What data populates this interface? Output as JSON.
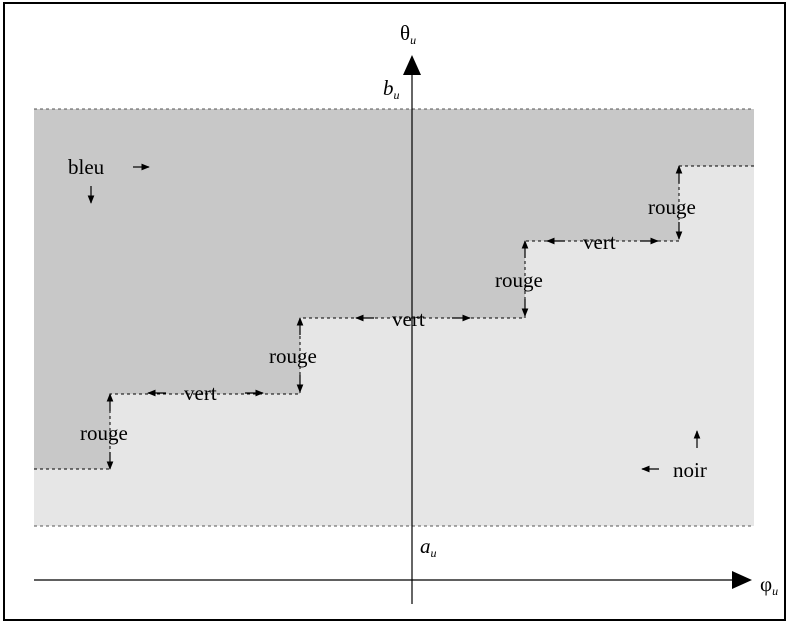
{
  "axes": {
    "vertical": {
      "symbol": "θ",
      "subscript": "u"
    },
    "horizontal": {
      "symbol": "φ",
      "subscript": "u"
    },
    "upper_bound": {
      "symbol": "b",
      "subscript": "u"
    },
    "lower_bound": {
      "symbol": "a",
      "subscript": "u"
    }
  },
  "regions": {
    "upper": {
      "label": "bleu",
      "fill": "#c8c8c8"
    },
    "lower": {
      "label": "noir",
      "fill": "#e6e6e6"
    }
  },
  "steps": {
    "rise_label": "rouge",
    "run_label": "vert"
  },
  "colors": {
    "stroke": "#000000",
    "background": "#ffffff"
  }
}
